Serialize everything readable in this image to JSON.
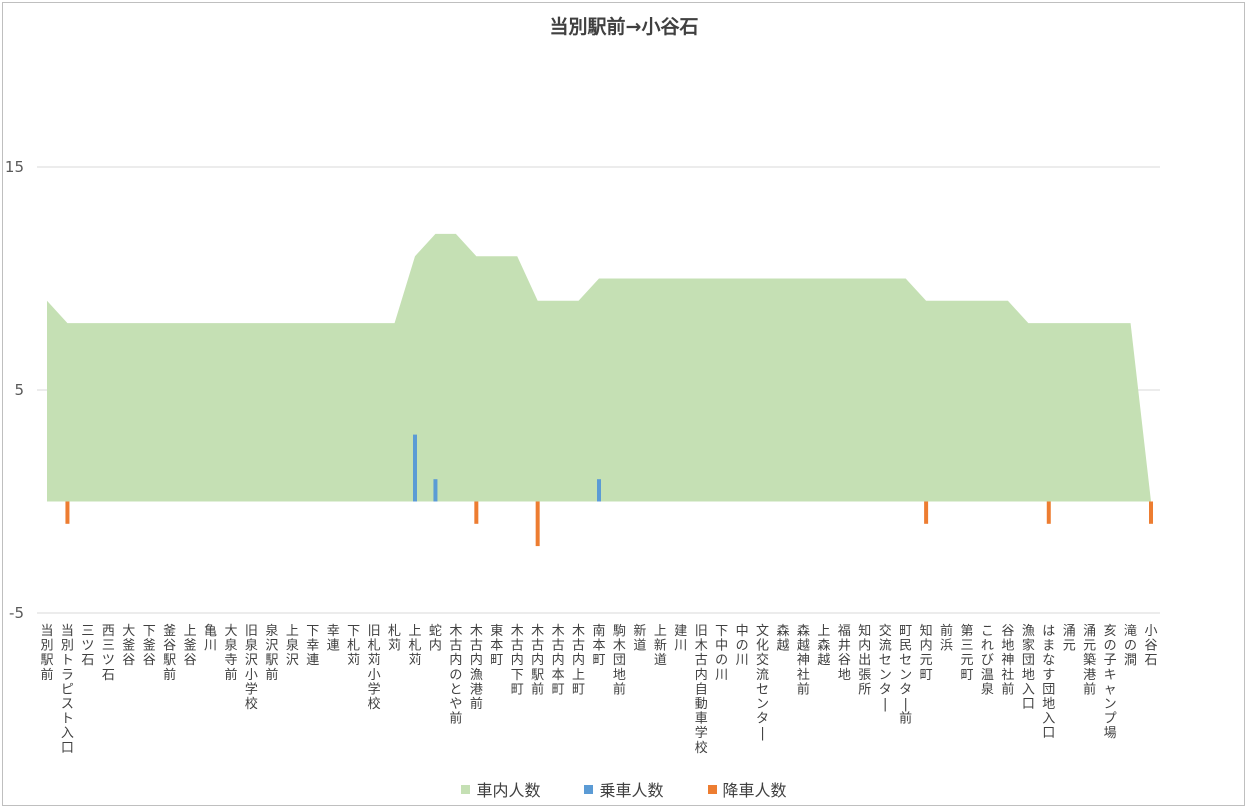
{
  "chart_data": {
    "type": "area",
    "title": "当別駅前→小谷石",
    "y_ticks": [
      "15",
      "5",
      "-5"
    ],
    "ylim": [
      -5,
      15
    ],
    "grid": true,
    "legend_position": "bottom",
    "categories": [
      "当別駅前",
      "当別トラピスト入口",
      "三ツ石",
      "西三ツ石",
      "大釜谷",
      "下釜谷",
      "釜谷駅前",
      "上釜谷",
      "亀川",
      "大泉寺前",
      "旧泉沢小学校",
      "泉沢駅前",
      "上泉沢",
      "下幸連",
      "幸連",
      "下札苅",
      "旧札苅小学校",
      "札苅",
      "上札苅",
      "蛇内",
      "木古内のとや前",
      "木古内漁港前",
      "東本町",
      "木古内下町",
      "木古内駅前",
      "木古内本町",
      "木古内上町",
      "南本町",
      "駒木団地前",
      "新道",
      "上新道",
      "建川",
      "旧木古内自動車学校",
      "下中の川",
      "中の川",
      "文化交流センター",
      "森越",
      "森越神社前",
      "上森越",
      "福井谷地",
      "知内出張所",
      "交流センター",
      "町民センター前",
      "知内元町",
      "前浜",
      "第三元町",
      "これび温泉",
      "谷地神社前",
      "漁家団地入口",
      "はまなす団地入口",
      "涌元",
      "涌元築港前",
      "亥の子キャンプ場",
      "滝の澗",
      "小谷石"
    ],
    "series": [
      {
        "name": "車内人数",
        "color": "#c5e0b4",
        "values": [
          9,
          8,
          8,
          8,
          8,
          8,
          8,
          8,
          8,
          8,
          8,
          8,
          8,
          8,
          8,
          8,
          8,
          8,
          11,
          12,
          12,
          11,
          11,
          11,
          9,
          9,
          9,
          10,
          10,
          10,
          10,
          10,
          10,
          10,
          10,
          10,
          10,
          10,
          10,
          10,
          10,
          10,
          10,
          9,
          9,
          9,
          9,
          9,
          8,
          8,
          8,
          8,
          8,
          8,
          0
        ]
      },
      {
        "name": "乗車人数",
        "color": "#5b9bd5",
        "values": [
          0,
          0,
          0,
          0,
          0,
          0,
          0,
          0,
          0,
          0,
          0,
          0,
          0,
          0,
          0,
          0,
          0,
          0,
          3,
          1,
          0,
          0,
          0,
          0,
          0,
          0,
          0,
          1,
          0,
          0,
          0,
          0,
          0,
          0,
          0,
          0,
          0,
          0,
          0,
          0,
          0,
          0,
          0,
          0,
          0,
          0,
          0,
          0,
          0,
          0,
          0,
          0,
          0,
          0,
          0
        ]
      },
      {
        "name": "降車人数",
        "color": "#ed7d31",
        "values": [
          0,
          -1,
          0,
          0,
          0,
          0,
          0,
          0,
          0,
          0,
          0,
          0,
          0,
          0,
          0,
          0,
          0,
          0,
          0,
          0,
          0,
          -1,
          0,
          0,
          -2,
          0,
          0,
          0,
          0,
          0,
          0,
          0,
          0,
          0,
          0,
          0,
          0,
          0,
          0,
          0,
          0,
          0,
          0,
          -1,
          0,
          0,
          0,
          0,
          0,
          -1,
          0,
          0,
          0,
          0,
          -1
        ]
      }
    ]
  }
}
